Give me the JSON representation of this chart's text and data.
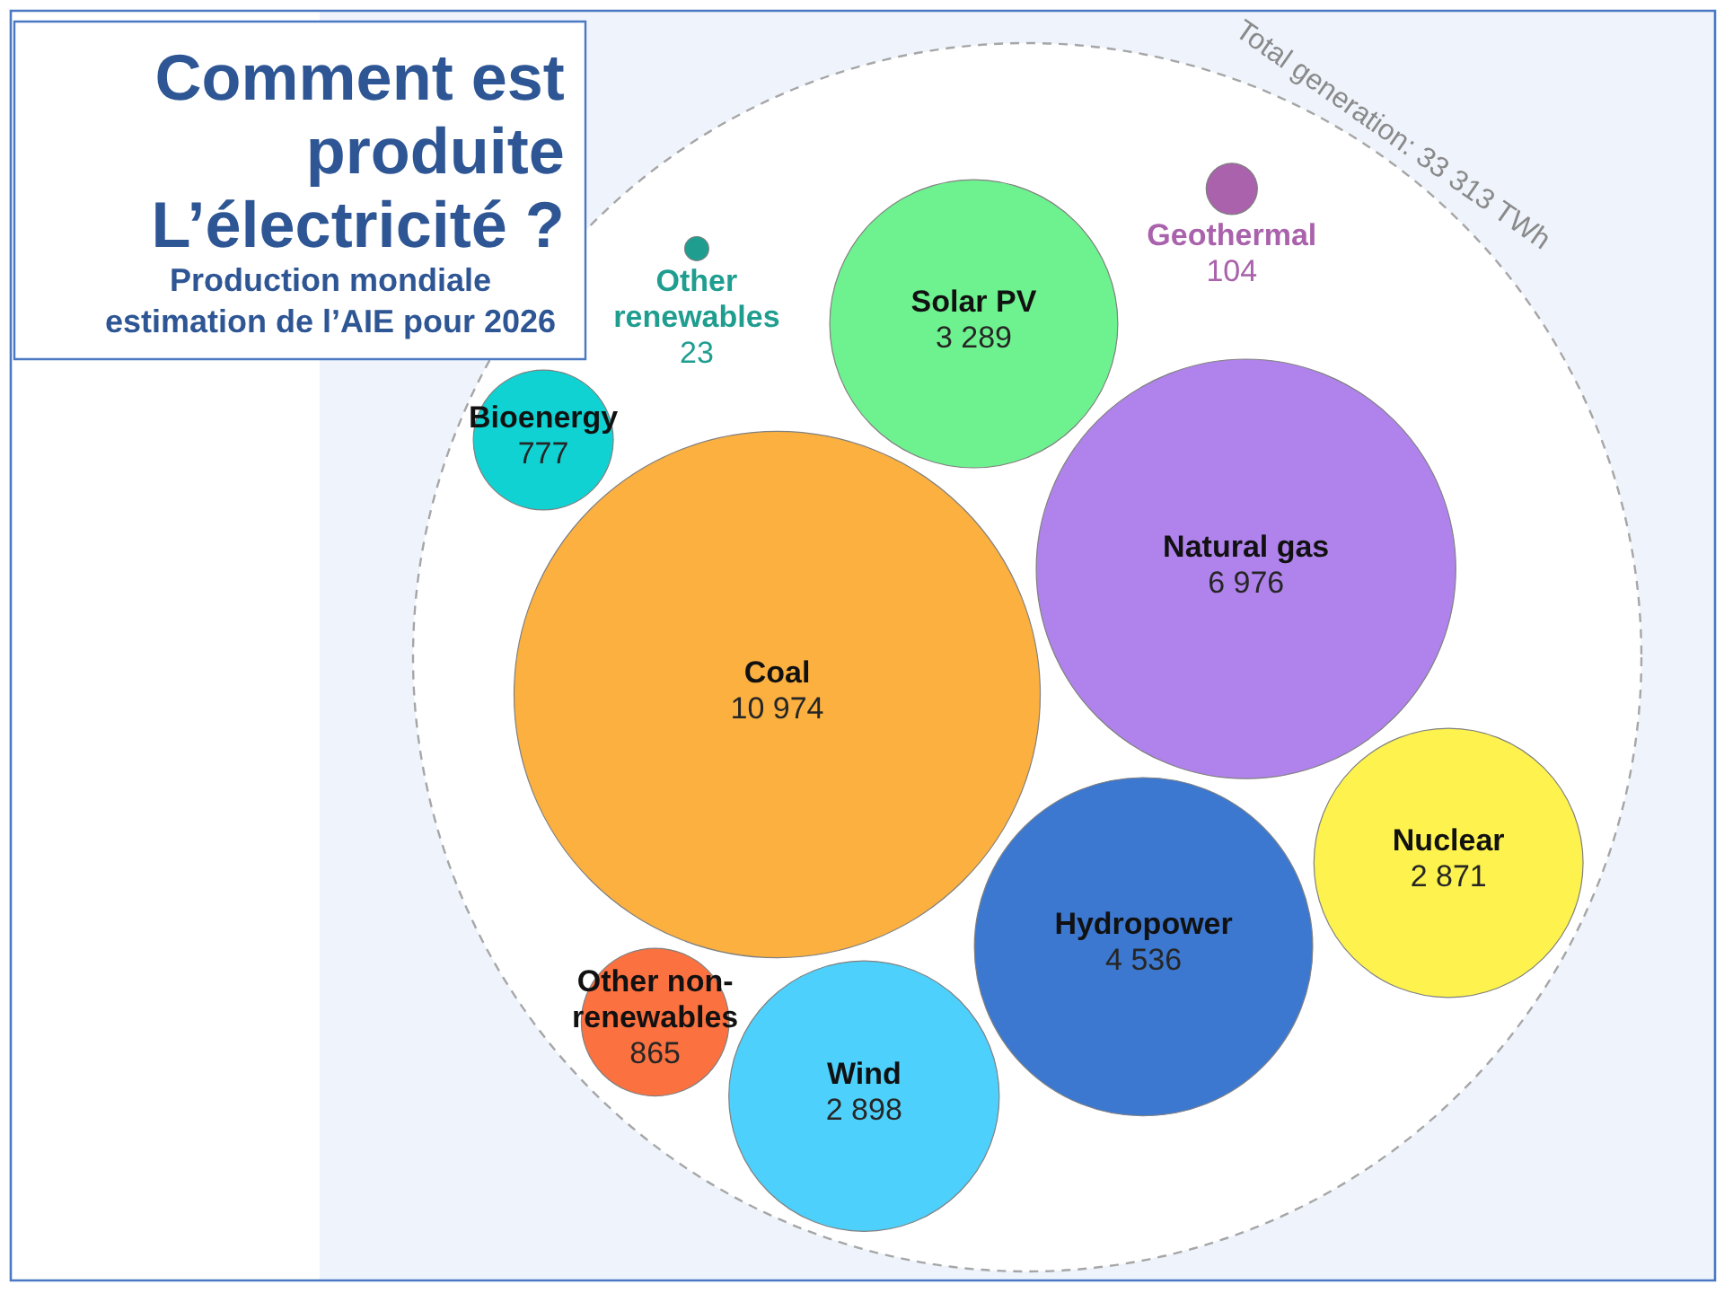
{
  "chart_data": {
    "type": "other",
    "title": "Comment est\nproduite\nL’électricité ?",
    "subtitle": "Production mondiale\nestimation de l’AIE pour 2026",
    "categories": [
      "Wind",
      "Solar PV",
      "Bioenergy",
      "Other renewables",
      "Coal",
      "Natural gas",
      "Geothermal",
      "Nuclear",
      "Hydropower",
      "Other non-renewables"
    ],
    "values": [
      2898,
      3289,
      777,
      23,
      10974,
      6976,
      104,
      2871,
      4536,
      865
    ],
    "value_labels": [
      "2 898",
      "3 289",
      "777",
      "23",
      "10 974",
      "6 976",
      "104",
      "2 871",
      "4 536",
      "865"
    ],
    "colors": [
      "#4dd0fb",
      "#6ef28f",
      "#10d2d2",
      "#1f9e90",
      "#fbb040",
      "#b083ec",
      "#a962ab",
      "#fdf24e",
      "#3c78d0",
      "#fb7140"
    ],
    "annotations": [
      "Total generation: 33 313 TWh"
    ]
  }
}
